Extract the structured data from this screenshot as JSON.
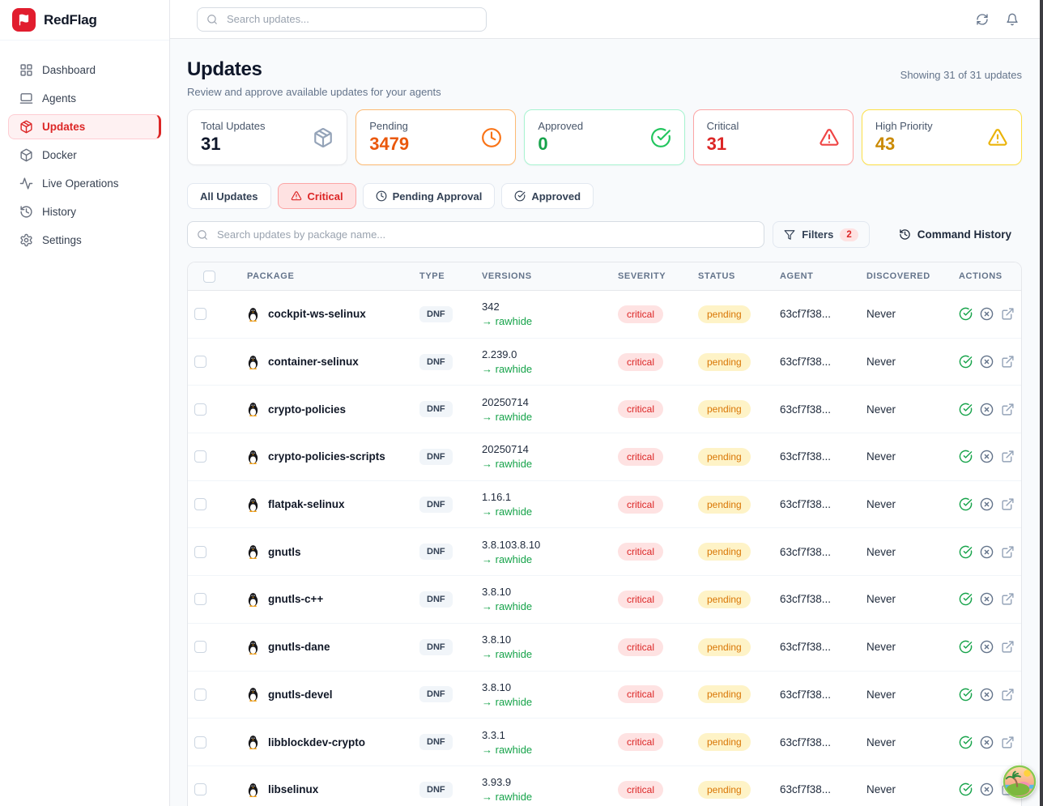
{
  "brand": {
    "name": "RedFlag"
  },
  "topbar": {
    "search_placeholder": "Search updates..."
  },
  "sidebar": {
    "items": [
      {
        "label": "Dashboard",
        "icon": "dashboard",
        "active": false
      },
      {
        "label": "Agents",
        "icon": "agents",
        "active": false
      },
      {
        "label": "Updates",
        "icon": "package",
        "active": true
      },
      {
        "label": "Docker",
        "icon": "box",
        "active": false
      },
      {
        "label": "Live Operations",
        "icon": "activity",
        "active": false
      },
      {
        "label": "History",
        "icon": "history",
        "active": false
      },
      {
        "label": "Settings",
        "icon": "settings",
        "active": false
      }
    ]
  },
  "page": {
    "title": "Updates",
    "subtitle": "Review and approve available updates for your agents",
    "showing": "Showing 31 of 31 updates"
  },
  "stats": [
    {
      "label": "Total Updates",
      "value": "31",
      "icon": "package",
      "value_color": "#0f172a",
      "icon_color": "#94a3b8",
      "border_color": "#e5e7eb"
    },
    {
      "label": "Pending",
      "value": "3479",
      "icon": "clock",
      "value_color": "#ea580c",
      "icon_color": "#f97316",
      "border_color": "#fdba74"
    },
    {
      "label": "Approved",
      "value": "0",
      "icon": "check-circle",
      "value_color": "#16a34a",
      "icon_color": "#22c55e",
      "border_color": "#a7f3d0"
    },
    {
      "label": "Critical",
      "value": "31",
      "icon": "alert-triangle",
      "value_color": "#dc2626",
      "icon_color": "#ef4444",
      "border_color": "#fca5a5"
    },
    {
      "label": "High Priority",
      "value": "43",
      "icon": "alert-triangle",
      "value_color": "#ca8a04",
      "icon_color": "#eab308",
      "border_color": "#fde047"
    }
  ],
  "filter_tabs": [
    {
      "label": "All Updates",
      "icon": "",
      "active": false
    },
    {
      "label": "Critical",
      "icon": "alert-triangle",
      "active": true
    },
    {
      "label": "Pending Approval",
      "icon": "clock",
      "active": false
    },
    {
      "label": "Approved",
      "icon": "check-circle",
      "active": false
    }
  ],
  "search_row": {
    "placeholder": "Search updates by package name...",
    "filters_label": "Filters",
    "filters_count": "2",
    "command_history_label": "Command History"
  },
  "table": {
    "columns": [
      "Package",
      "Type",
      "Versions",
      "Severity",
      "Status",
      "Agent",
      "Discovered",
      "Actions"
    ],
    "rows": [
      {
        "package": "cockpit-ws-selinux",
        "type": "DNF",
        "version": "342",
        "target": "rawhide",
        "severity": "critical",
        "status": "pending",
        "agent": "63cf7f38...",
        "discovered": "Never"
      },
      {
        "package": "container-selinux",
        "type": "DNF",
        "version": "2.239.0",
        "target": "rawhide",
        "severity": "critical",
        "status": "pending",
        "agent": "63cf7f38...",
        "discovered": "Never"
      },
      {
        "package": "crypto-policies",
        "type": "DNF",
        "version": "20250714",
        "target": "rawhide",
        "severity": "critical",
        "status": "pending",
        "agent": "63cf7f38...",
        "discovered": "Never"
      },
      {
        "package": "crypto-policies-scripts",
        "type": "DNF",
        "version": "20250714",
        "target": "rawhide",
        "severity": "critical",
        "status": "pending",
        "agent": "63cf7f38...",
        "discovered": "Never"
      },
      {
        "package": "flatpak-selinux",
        "type": "DNF",
        "version": "1.16.1",
        "target": "rawhide",
        "severity": "critical",
        "status": "pending",
        "agent": "63cf7f38...",
        "discovered": "Never"
      },
      {
        "package": "gnutls",
        "type": "DNF",
        "version": "3.8.103.8.10",
        "target": "rawhide",
        "severity": "critical",
        "status": "pending",
        "agent": "63cf7f38...",
        "discovered": "Never"
      },
      {
        "package": "gnutls-c++",
        "type": "DNF",
        "version": "3.8.10",
        "target": "rawhide",
        "severity": "critical",
        "status": "pending",
        "agent": "63cf7f38...",
        "discovered": "Never"
      },
      {
        "package": "gnutls-dane",
        "type": "DNF",
        "version": "3.8.10",
        "target": "rawhide",
        "severity": "critical",
        "status": "pending",
        "agent": "63cf7f38...",
        "discovered": "Never"
      },
      {
        "package": "gnutls-devel",
        "type": "DNF",
        "version": "3.8.10",
        "target": "rawhide",
        "severity": "critical",
        "status": "pending",
        "agent": "63cf7f38...",
        "discovered": "Never"
      },
      {
        "package": "libblockdev-crypto",
        "type": "DNF",
        "version": "3.3.1",
        "target": "rawhide",
        "severity": "critical",
        "status": "pending",
        "agent": "63cf7f38...",
        "discovered": "Never"
      },
      {
        "package": "libselinux",
        "type": "DNF",
        "version": "3.93.9",
        "target": "rawhide",
        "severity": "critical",
        "status": "pending",
        "agent": "63cf7f38...",
        "discovered": "Never"
      }
    ]
  }
}
